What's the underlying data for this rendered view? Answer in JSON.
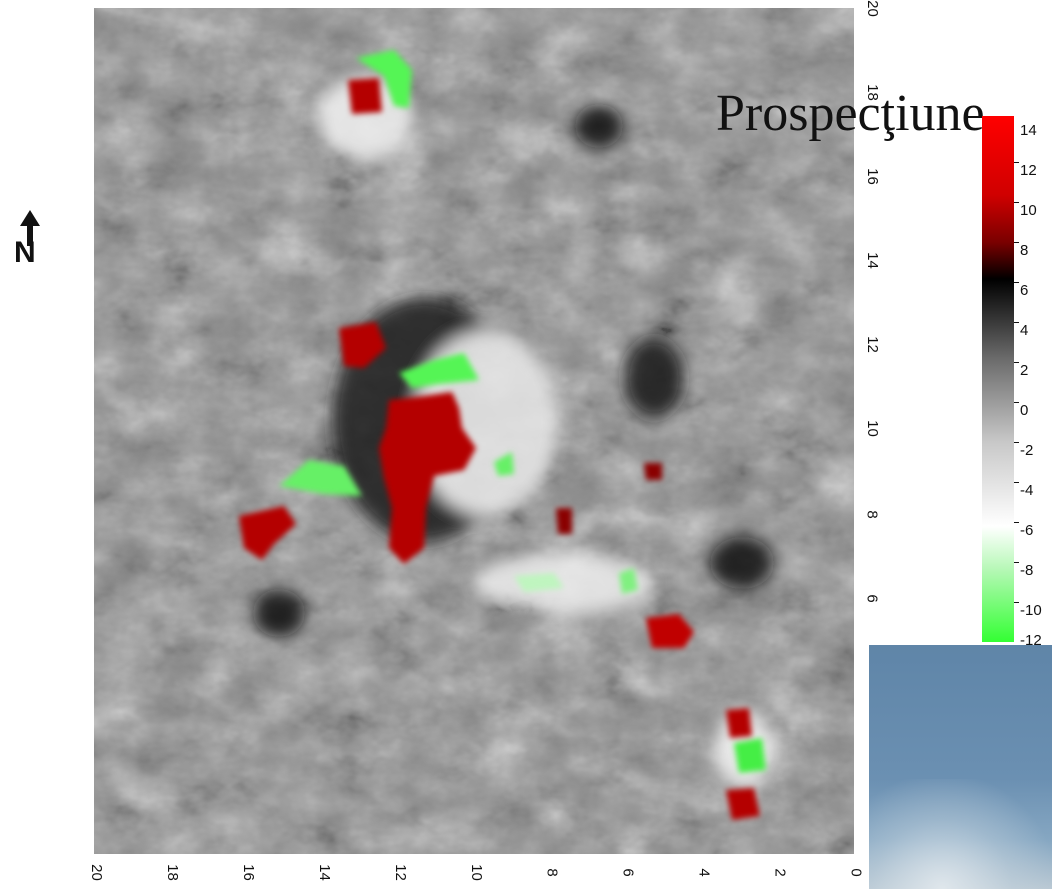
{
  "title": "Prospecţiune",
  "north_label": "N",
  "axes": {
    "right_ticks": [
      "20",
      "18",
      "16",
      "14",
      "12",
      "10",
      "8",
      "6"
    ],
    "bottom_ticks": [
      "20",
      "18",
      "16",
      "14",
      "12",
      "10",
      "8",
      "6",
      "4",
      "2",
      "0"
    ]
  },
  "legend": {
    "labels": [
      "14",
      "12",
      "10",
      "8",
      "6",
      "4",
      "2",
      "0",
      "-2",
      "-4",
      "-6",
      "-8",
      "-10",
      "-12"
    ],
    "colors": {
      "high": "#ff0000",
      "mid_high": "#7a0000",
      "zero": "#000000",
      "mid_low": "#ffffff",
      "low": "#33ff33"
    }
  },
  "anomaly_colors": {
    "positive": "#b40000",
    "positive_core": "#d40000",
    "negative": "#55f555",
    "background": "#8a8a8a"
  }
}
